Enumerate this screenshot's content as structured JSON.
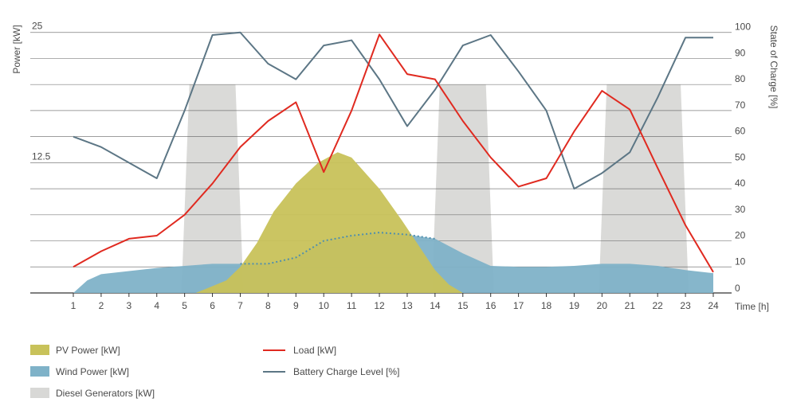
{
  "chart_data": {
    "type": "area",
    "title": "",
    "ylabel_left": "Power [kW]",
    "ylabel_right": "State of Charge [%]",
    "xlabel": "Time [h]",
    "left_axis": {
      "range": [
        0,
        27.5
      ],
      "tick_labels": [
        {
          "value": 12.5,
          "label": "12.5"
        },
        {
          "value": 25,
          "label": "25"
        }
      ]
    },
    "right_axis": {
      "range": [
        0,
        100
      ],
      "ticks": [
        0,
        10,
        20,
        30,
        40,
        50,
        60,
        70,
        80,
        90,
        100
      ],
      "tick_labels": [
        "0",
        "10",
        "20",
        "30",
        "40",
        "50",
        "60",
        "70",
        "80",
        "90",
        "100"
      ]
    },
    "grid_right_values": [
      10,
      20,
      30,
      40,
      50,
      60,
      70,
      80,
      90,
      100
    ],
    "x_ticks": [
      "1",
      "2",
      "3",
      "4",
      "5",
      "6",
      "7",
      "8",
      "9",
      "10",
      "11",
      "12",
      "13",
      "14",
      "15",
      "16",
      "17",
      "18",
      "19",
      "20",
      "21",
      "22",
      "23",
      "24"
    ],
    "x_range": [
      0.5,
      24.5
    ],
    "grid": "horizontal",
    "legend_position": "bottom",
    "colors": {
      "pv": "#c8c25a",
      "wind": "#7fb2c8",
      "diesel": "#d8d8d6",
      "load": "#e02a20",
      "battery": "#5c7685",
      "grid": "#555555"
    },
    "series": [
      {
        "name": "PV Power [kW]",
        "kind": "area",
        "unit": "kW",
        "x": [
          5.4,
          6.5,
          7.0,
          7.6,
          8.2,
          9.0,
          9.8,
          10.5,
          11.0,
          12.0,
          12.8,
          13.5,
          14.0,
          14.5,
          15.0
        ],
        "y": [
          0,
          1.2,
          2.5,
          4.8,
          7.8,
          10.5,
          12.5,
          13.5,
          13.0,
          10.0,
          7.0,
          4.2,
          2.2,
          0.8,
          0
        ]
      },
      {
        "name": "Wind Power [kW]",
        "kind": "area",
        "unit": "kW",
        "x": [
          1.0,
          1.5,
          2.0,
          3.0,
          4.0,
          5.0,
          6.0,
          7.0,
          8.0,
          9.0,
          10.0,
          11.0,
          12.0,
          13.0,
          14.0,
          15.0,
          16.0,
          17.0,
          18.0,
          19.0,
          20.0,
          21.0,
          22.0,
          23.0,
          24.0
        ],
        "y": [
          0,
          1.2,
          1.8,
          2.1,
          2.4,
          2.6,
          2.8,
          2.8,
          2.8,
          3.4,
          5.0,
          5.5,
          5.8,
          5.6,
          5.2,
          3.8,
          2.6,
          2.5,
          2.5,
          2.6,
          2.8,
          2.8,
          2.6,
          2.2,
          1.9
        ]
      },
      {
        "name": "Diesel Generators [kW]",
        "kind": "blocks",
        "unit": "kW",
        "blocks": [
          {
            "start": 5.0,
            "end": 7.0,
            "level": 20.0
          },
          {
            "start": 14.0,
            "end": 16.0,
            "level": 20.0
          },
          {
            "start": 20.0,
            "end": 23.0,
            "level": 20.0
          }
        ]
      },
      {
        "name": "Load [kW]",
        "kind": "line",
        "axis": "left",
        "unit": "kW",
        "x": [
          1,
          2,
          3,
          4,
          5,
          6,
          7,
          8,
          9,
          10,
          11,
          12,
          13,
          14,
          15,
          16,
          17,
          18,
          19,
          20,
          21,
          22,
          23,
          24
        ],
        "y": [
          2.5,
          4.0,
          5.2,
          5.5,
          7.5,
          10.5,
          14.0,
          16.5,
          18.3,
          11.6,
          17.5,
          24.8,
          21.0,
          20.5,
          16.5,
          13.0,
          10.2,
          11.0,
          15.5,
          19.4,
          17.6,
          12.0,
          6.5,
          2.0
        ]
      },
      {
        "name": "Battery Charge Level [%]",
        "kind": "line",
        "axis": "right",
        "unit": "%",
        "x": [
          1,
          2,
          3,
          4,
          5,
          6,
          7,
          8,
          9,
          10,
          11,
          12,
          13,
          14,
          15,
          16,
          17,
          18,
          19,
          20,
          21,
          22,
          23,
          24
        ],
        "y": [
          60,
          56,
          50,
          44,
          70,
          99,
          100,
          88,
          82,
          95,
          97,
          82,
          64,
          78,
          95,
          99,
          85,
          70,
          40,
          46,
          54,
          75,
          98,
          98
        ]
      }
    ]
  }
}
